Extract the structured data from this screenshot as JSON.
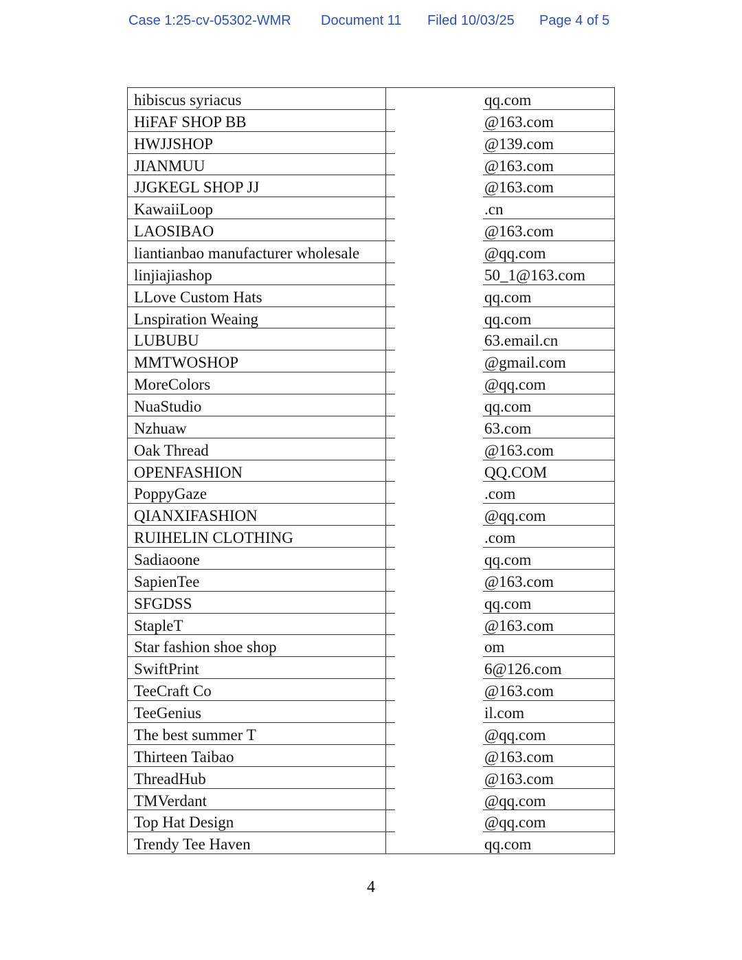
{
  "header": {
    "case": "Case 1:25-cv-05302-WMR",
    "document": "Document 11",
    "filed": "Filed 10/03/25",
    "page": "Page 4 of 5"
  },
  "table": {
    "rows": [
      [
        "hibiscus syriacus",
        "qq.com"
      ],
      [
        "HiFAF SHOP BB",
        "@163.com"
      ],
      [
        "HWJJSHOP",
        "@139.com"
      ],
      [
        "JIANMUU",
        "@163.com"
      ],
      [
        "JJGKEGL SHOP JJ",
        "@163.com"
      ],
      [
        "KawaiiLoop",
        ".cn"
      ],
      [
        "LAOSIBAO",
        "@163.com"
      ],
      [
        "liantianbao manufacturer wholesale",
        "@qq.com"
      ],
      [
        "linjiajiashop",
        "50_1@163.com"
      ],
      [
        "LLove Custom Hats",
        "qq.com"
      ],
      [
        "Lnspiration Weaing",
        "qq.com"
      ],
      [
        "LUBUBU",
        "63.email.cn"
      ],
      [
        "MMTWOSHOP",
        "@gmail.com"
      ],
      [
        "MoreColors",
        "@qq.com"
      ],
      [
        "NuaStudio",
        "qq.com"
      ],
      [
        "Nzhuaw",
        "63.com"
      ],
      [
        "Oak Thread",
        "@163.com"
      ],
      [
        "OPENFASHION",
        "QQ.COM"
      ],
      [
        "PoppyGaze",
        ".com"
      ],
      [
        "QIANXIFASHION",
        "@qq.com"
      ],
      [
        "RUIHELIN CLOTHING",
        ".com"
      ],
      [
        "Sadiaoone",
        "qq.com"
      ],
      [
        "SapienTee",
        "@163.com"
      ],
      [
        "SFGDSS",
        "qq.com"
      ],
      [
        "StapleT",
        "@163.com"
      ],
      [
        "Star fashion shoe shop",
        "om"
      ],
      [
        "SwiftPrint",
        "6@126.com"
      ],
      [
        "TeeCraft Co",
        "@163.com"
      ],
      [
        "TeeGenius",
        "il.com"
      ],
      [
        "The best summer T",
        "@qq.com"
      ],
      [
        "Thirteen Taibao",
        "@163.com"
      ],
      [
        "ThreadHub",
        "@163.com"
      ],
      [
        "TMVerdant",
        "@qq.com"
      ],
      [
        "Top Hat Design",
        "@qq.com"
      ],
      [
        "Trendy Tee Haven",
        "qq.com"
      ]
    ]
  },
  "footer": {
    "page_number": "4"
  }
}
